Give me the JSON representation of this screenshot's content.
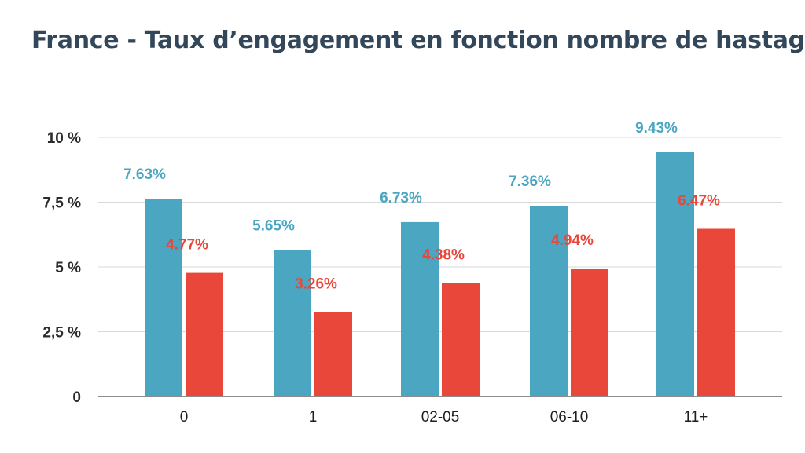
{
  "title": "France - Taux d’engagement en fonction nombre de hastags",
  "colors": {
    "series_a": "#4aa6c1",
    "series_b": "#e8473a",
    "label_a": "#4aa6c1",
    "label_b": "#e8473a",
    "grid": "#d9d9d9",
    "axis": "#666666"
  },
  "chart_data": {
    "type": "bar",
    "title": "France - Taux d’engagement en fonction nombre de hastags",
    "xlabel": "",
    "ylabel": "",
    "categories": [
      "0",
      "1",
      "02-05",
      "06-10",
      "11+"
    ],
    "series": [
      {
        "values": [
          7.63,
          5.65,
          6.73,
          7.36,
          9.43
        ],
        "labels": [
          "7.63%",
          "5.65%",
          "6.73%",
          "7.36%",
          "9.43%"
        ]
      },
      {
        "values": [
          4.77,
          3.26,
          4.38,
          4.94,
          6.47
        ],
        "labels": [
          "4.77%",
          "3.26%",
          "4.38%",
          "4.94%",
          "6.47%"
        ]
      }
    ],
    "ylim": [
      0,
      10
    ],
    "yticks": [
      0,
      2.5,
      5,
      7.5,
      10
    ],
    "ytick_labels": [
      "0",
      "2,5 %",
      "5 %",
      "7,5 %",
      "10 %"
    ],
    "grid": true,
    "legend": "none"
  }
}
